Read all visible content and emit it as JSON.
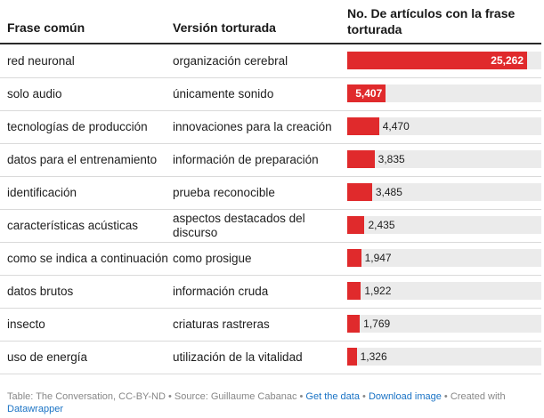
{
  "chart_data": {
    "type": "table",
    "columns": [
      "Frase común",
      "Versión torturada",
      "No. De artículos con la frase torturada"
    ],
    "rows": [
      {
        "common": "red neuronal",
        "tortured": "organización cerebral",
        "value": 25262,
        "label": "25,262"
      },
      {
        "common": "solo audio",
        "tortured": "únicamente sonido",
        "value": 5407,
        "label": "5,407"
      },
      {
        "common": "tecnologías de producción",
        "tortured": "innovaciones para la creación",
        "value": 4470,
        "label": "4,470"
      },
      {
        "common": "datos para el entrenamiento",
        "tortured": "información de preparación",
        "value": 3835,
        "label": "3,835"
      },
      {
        "common": "identificación",
        "tortured": "prueba reconocible",
        "value": 3485,
        "label": "3,485"
      },
      {
        "common": "características acústicas",
        "tortured": "aspectos destacados del discurso",
        "value": 2435,
        "label": "2,435"
      },
      {
        "common": "como se indica a continuación",
        "tortured": "como prosigue",
        "value": 1947,
        "label": "1,947"
      },
      {
        "common": "datos brutos",
        "tortured": "información cruda",
        "value": 1922,
        "label": "1,922"
      },
      {
        "common": "insecto",
        "tortured": "criaturas rastreras",
        "value": 1769,
        "label": "1,769"
      },
      {
        "common": "uso de energía",
        "tortured": "utilización de la vitalidad",
        "value": 1326,
        "label": "1,326"
      }
    ],
    "max_value": 25262,
    "bar_color": "#e02a2c",
    "track_color": "#ebebeb"
  },
  "footer": {
    "source_text": "Table: The Conversation, CC-BY-ND • Source: Guillaume Cabanac • ",
    "get_data": "Get the data",
    "sep1": " • ",
    "download": "Download image",
    "created_with": " • Created with ",
    "datawrapper": "Datawrapper"
  },
  "colors": {
    "link": "#1a73c5"
  }
}
